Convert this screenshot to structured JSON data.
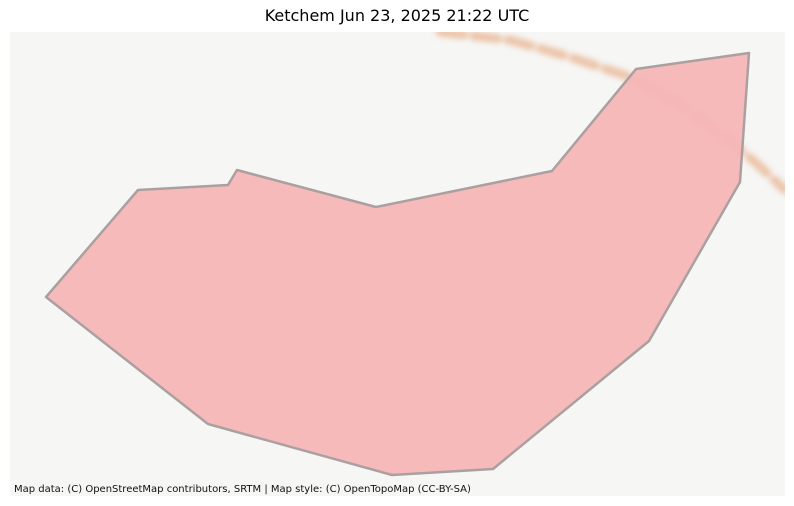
{
  "title": "Ketchem Jun 23, 2025 21:22 UTC",
  "map": {
    "attribution": "Map data: (C) OpenStreetMap contributors, SRTM | Map style: (C) OpenTopoMap (CC-BY-SA)",
    "background_color": "#f6f6f5",
    "road_color": "#e9b38f",
    "area_fill_color": "#f7b7b7",
    "area_stroke_color": "#a89c9c"
  }
}
